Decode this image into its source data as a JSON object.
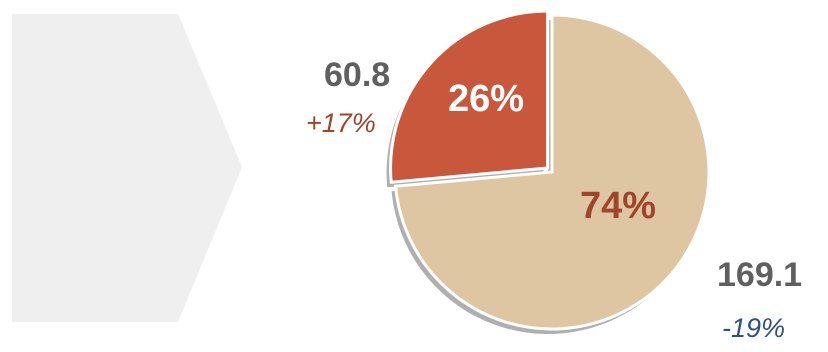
{
  "colors": {
    "panel": "#efefef",
    "beige_slice": "#dfc6a2",
    "orange_slice": "#c8573b",
    "pct_beige_text": "#a0442a",
    "change_positive": "#a0442a",
    "change_negative": "#2e5080",
    "value_text": "#5f5f5f"
  },
  "chart_data": {
    "type": "pie",
    "slices": [
      {
        "value": 60.8,
        "percent": 26,
        "percent_label": "26%",
        "value_label": "60.8",
        "change_label": "+17%",
        "color": "#c8573b",
        "exploded": true
      },
      {
        "value": 169.1,
        "percent": 74,
        "percent_label": "74%",
        "value_label": "169.1",
        "change_label": "-19%",
        "color": "#dfc6a2",
        "exploded": false
      }
    ]
  }
}
